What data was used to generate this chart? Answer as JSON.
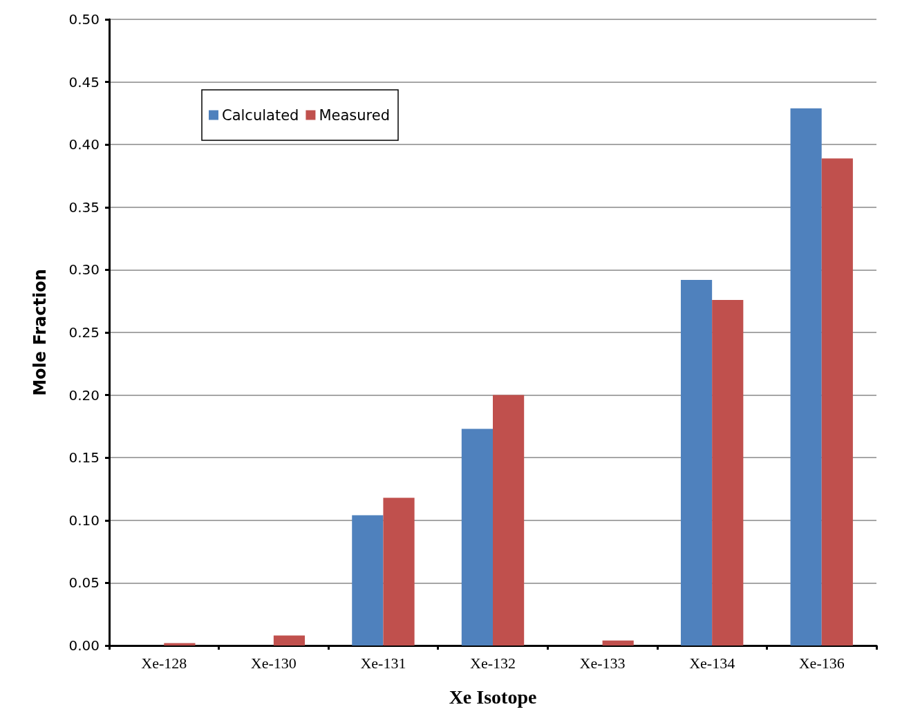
{
  "chart_data": {
    "type": "bar",
    "xlabel": "Xe Isotope",
    "ylabel": "Mole Fraction",
    "categories": [
      "Xe-128",
      "Xe-130",
      "Xe-131",
      "Xe-132",
      "Xe-133",
      "Xe-134",
      "Xe-136"
    ],
    "series": [
      {
        "name": "Calculated",
        "color": "#4f81bd",
        "values": [
          0,
          0,
          0.104,
          0.173,
          0,
          0.292,
          0.429
        ]
      },
      {
        "name": "Measured",
        "color": "#c0504d",
        "values": [
          0.002,
          0.008,
          0.118,
          0.2,
          0.004,
          0.276,
          0.389
        ]
      }
    ],
    "ylim": [
      0,
      0.5
    ],
    "yticks": [
      {
        "value": 0,
        "label": "0.00"
      },
      {
        "value": 0.05,
        "label": "0.05"
      },
      {
        "value": 0.1,
        "label": "0.10"
      },
      {
        "value": 0.15,
        "label": "0.15"
      },
      {
        "value": 0.2,
        "label": "0.20"
      },
      {
        "value": 0.25,
        "label": "0.25"
      },
      {
        "value": 0.3,
        "label": "0.30"
      },
      {
        "value": 0.35,
        "label": "0.35"
      },
      {
        "value": 0.4,
        "label": "0.40"
      },
      {
        "value": 0.45,
        "label": "0.45"
      },
      {
        "value": 0.5,
        "label": "0.50"
      }
    ],
    "grid": "y",
    "legend": "top left"
  }
}
